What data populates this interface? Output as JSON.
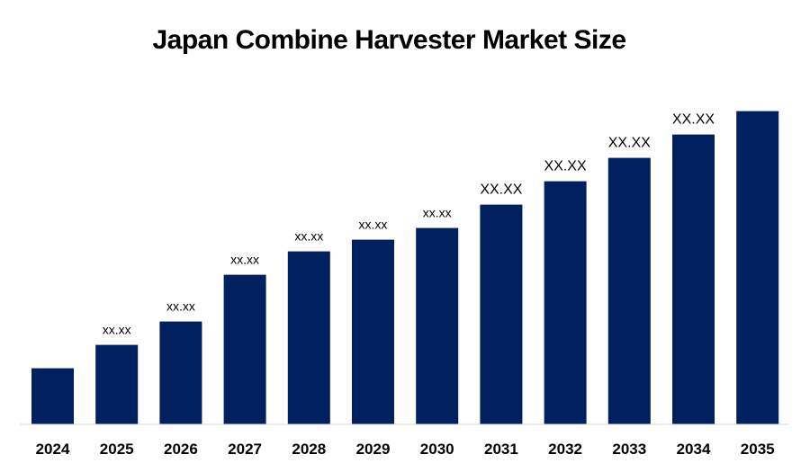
{
  "chart_data": {
    "type": "bar",
    "title": "Japan Combine Harvester Market Size",
    "categories": [
      "2024",
      "2025",
      "2026",
      "2027",
      "2028",
      "2029",
      "2030",
      "2031",
      "2032",
      "2033",
      "2034",
      "2035"
    ],
    "values": [
      2.4,
      3.4,
      4.4,
      6.4,
      7.4,
      7.9,
      8.4,
      9.4,
      10.4,
      11.4,
      12.4,
      13.4
    ],
    "data_labels": [
      "",
      "xx.xx",
      "xx.xx",
      "xx.xx",
      "xx.xx",
      "xx.xx",
      "xx.xx",
      "XX.XX",
      "XX.XX",
      "XX.XX",
      "XX.XX",
      ""
    ],
    "ylim": [
      0,
      14
    ],
    "xlabel": "",
    "ylabel": "",
    "grid": false,
    "legend": "none",
    "bar_color": "#002060",
    "axis_color": "#d9d9d9"
  }
}
